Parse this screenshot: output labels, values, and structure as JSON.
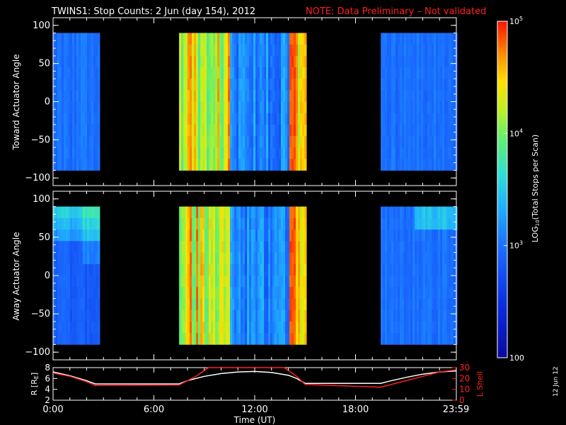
{
  "title": {
    "main": "TWINS1: Stop Counts:  2 Jun (day 154), 2012",
    "note": "NOTE: Data Preliminary – Not validated"
  },
  "date_stamp": "12 Jun 12",
  "colors": {
    "background": "#000000",
    "axes": "#ffffff",
    "note": "#ff2020",
    "r_line": "#ffffff",
    "lshell_line": "#ff2020"
  },
  "chart_data": [
    {
      "type": "heatmap",
      "ylabel": "Toward Actuator Angle",
      "ylim": [
        -110,
        110
      ],
      "yticks": [
        -100,
        -50,
        0,
        50,
        100
      ],
      "xlim": [
        0,
        24
      ],
      "x_units": "hours UT",
      "data_y_range": [
        -90,
        90
      ],
      "blocks": [
        {
          "x_start": 0.0,
          "x_end": 2.75,
          "level": "low"
        },
        {
          "x_start": 7.5,
          "x_end": 15.0,
          "level": "mixed-high"
        },
        {
          "x_start": 19.5,
          "x_end": 24.0,
          "level": "low"
        }
      ]
    },
    {
      "type": "heatmap",
      "ylabel": "Away Actuator Angle",
      "ylim": [
        -110,
        110
      ],
      "yticks": [
        -100,
        -50,
        0,
        50,
        100
      ],
      "xlim": [
        0,
        24
      ],
      "x_units": "hours UT",
      "data_y_range": [
        -90,
        90
      ],
      "blocks": [
        {
          "x_start": 0.0,
          "x_end": 2.75,
          "level": "low"
        },
        {
          "x_start": 7.5,
          "x_end": 15.0,
          "level": "mixed-high"
        },
        {
          "x_start": 19.5,
          "x_end": 24.0,
          "level": "low"
        }
      ]
    },
    {
      "type": "line",
      "xlabel": "Time (UT)",
      "xticks": [
        "0:00",
        "6:00",
        "12:00",
        "18:00",
        "23:59"
      ],
      "xtick_hours": [
        0,
        6,
        12,
        18,
        23.98
      ],
      "xlim": [
        0,
        24
      ],
      "ylabel_left": "R [R",
      "ylabel_left_sub": "E",
      "ylabel_left_close": "]",
      "ylim_left": [
        2,
        8
      ],
      "yticks_left": [
        "2",
        "4",
        "6",
        "8"
      ],
      "ylabel_right": "L Shell",
      "ylim_right": [
        0,
        30
      ],
      "yticks_right": [
        "0",
        "10",
        "20",
        "30"
      ],
      "series": [
        {
          "axis": "left",
          "x": [
            0,
            1,
            2,
            2.5,
            7.5,
            8,
            9,
            10,
            11,
            12,
            13,
            14,
            14.5,
            15,
            19.5,
            20,
            21,
            22,
            23,
            24
          ],
          "y": [
            7.2,
            6.5,
            5.6,
            5.0,
            5.0,
            5.6,
            6.4,
            6.9,
            7.2,
            7.3,
            7.1,
            6.6,
            6.0,
            5.1,
            5.1,
            5.5,
            6.2,
            6.8,
            7.2,
            7.4
          ]
        },
        {
          "axis": "right",
          "x": [
            0,
            1,
            2,
            2.5,
            7.5,
            8.5,
            9.25,
            13.75,
            14.5,
            15,
            19.5,
            20.5,
            22,
            23,
            24
          ],
          "y": [
            25,
            22,
            17,
            13.5,
            14,
            22,
            31,
            31,
            22,
            14.5,
            12,
            16,
            22,
            26,
            28
          ]
        }
      ]
    },
    {
      "type": "colorbar",
      "label": "LOG",
      "label_sub": "10",
      "label_rest": "(Total Stops per Scan)",
      "range": [
        100,
        100000
      ],
      "scale": "log",
      "ticks": [
        {
          "value": 100000,
          "label": "10",
          "sup": "5"
        },
        {
          "value": 10000,
          "label": "10",
          "sup": "4"
        },
        {
          "value": 1000,
          "label": "10",
          "sup": "3"
        },
        {
          "value": 100,
          "label": "100",
          "sup": ""
        }
      ]
    }
  ]
}
